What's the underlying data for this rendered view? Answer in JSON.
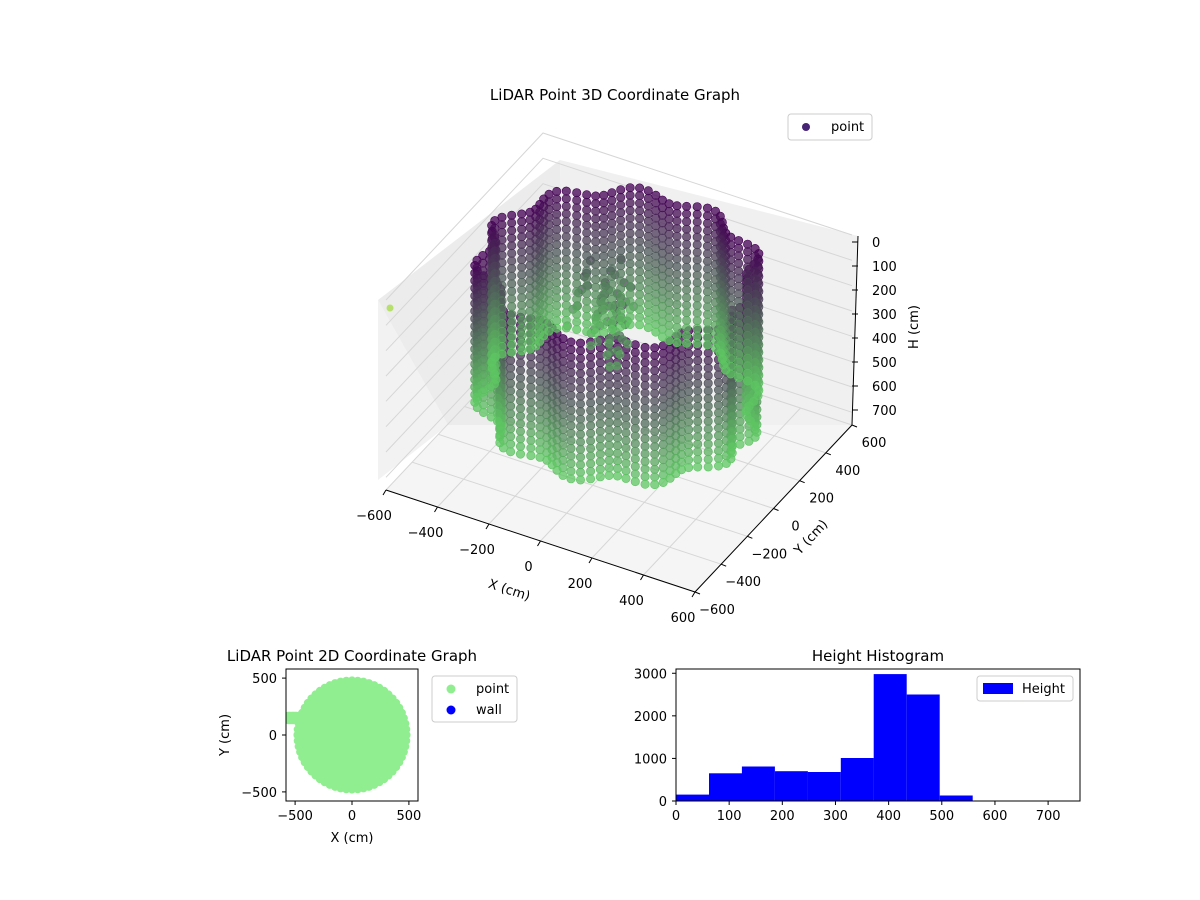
{
  "colors": {
    "point_3d_high": "#440154",
    "point_3d_low": "#5ec962",
    "point_2d": "#90ee90",
    "wall_2d": "#0000ff",
    "histogram": "#0000ff",
    "pane": "#f2f2f2",
    "grid": "#d6d6d6"
  },
  "chart_data": [
    {
      "type": "scatter",
      "title": "LiDAR Point 3D Coordinate Graph",
      "xlabel": "X (cm)",
      "ylabel": "Y (cm)",
      "zlabel": "H (cm)",
      "xlim": [
        -600,
        600
      ],
      "ylim": [
        -600,
        600
      ],
      "zlim": [
        750,
        0
      ],
      "x_ticks": [
        "−600",
        "−400",
        "−200",
        "0",
        "200",
        "400",
        "600"
      ],
      "y_ticks": [
        "−600",
        "−400",
        "−200",
        "0",
        "200",
        "400",
        "600"
      ],
      "z_ticks": [
        "0",
        "100",
        "200",
        "300",
        "400",
        "500",
        "600",
        "700"
      ],
      "legend": [
        "point"
      ],
      "legend_position": "top-right",
      "colormap": "viridis",
      "grid": true,
      "projection": "3d",
      "shape": "cylindrical wall of points, radius about 500 cm, heights 0–550 cm",
      "series": [
        {
          "name": "point"
        }
      ]
    },
    {
      "type": "scatter",
      "title": "LiDAR Point 2D Coordinate Graph",
      "xlabel": "X (cm)",
      "ylabel": "Y (cm)",
      "xlim": [
        -580,
        580
      ],
      "ylim": [
        -580,
        580
      ],
      "x_ticks": [
        "−500",
        "0",
        "500"
      ],
      "y_ticks": [
        "500",
        "0",
        "−500"
      ],
      "legend": [
        "point",
        "wall"
      ],
      "legend_position": "outside-right",
      "shape": "filled disk of radius about 500 cm",
      "series": [
        {
          "name": "point"
        },
        {
          "name": "wall"
        }
      ]
    },
    {
      "type": "bar",
      "title": "Height Histogram",
      "legend": [
        "Height"
      ],
      "legend_position": "top-right",
      "xlim": [
        0,
        760
      ],
      "ylim": [
        0,
        3100
      ],
      "x_ticks": [
        "0",
        "100",
        "200",
        "300",
        "400",
        "500",
        "600",
        "700"
      ],
      "y_ticks": [
        "0",
        "1000",
        "2000",
        "3000"
      ],
      "bins": [
        {
          "x0": 0,
          "x1": 62,
          "count": 150
        },
        {
          "x0": 62,
          "x1": 124,
          "count": 650
        },
        {
          "x0": 124,
          "x1": 186,
          "count": 810
        },
        {
          "x0": 186,
          "x1": 248,
          "count": 700
        },
        {
          "x0": 248,
          "x1": 310,
          "count": 680
        },
        {
          "x0": 310,
          "x1": 372,
          "count": 1010
        },
        {
          "x0": 372,
          "x1": 434,
          "count": 2980
        },
        {
          "x0": 434,
          "x1": 496,
          "count": 2500
        },
        {
          "x0": 496,
          "x1": 558,
          "count": 130
        },
        {
          "x0": 558,
          "x1": 620,
          "count": 0
        },
        {
          "x0": 620,
          "x1": 682,
          "count": 0
        },
        {
          "x0": 682,
          "x1": 744,
          "count": 0
        }
      ]
    }
  ]
}
